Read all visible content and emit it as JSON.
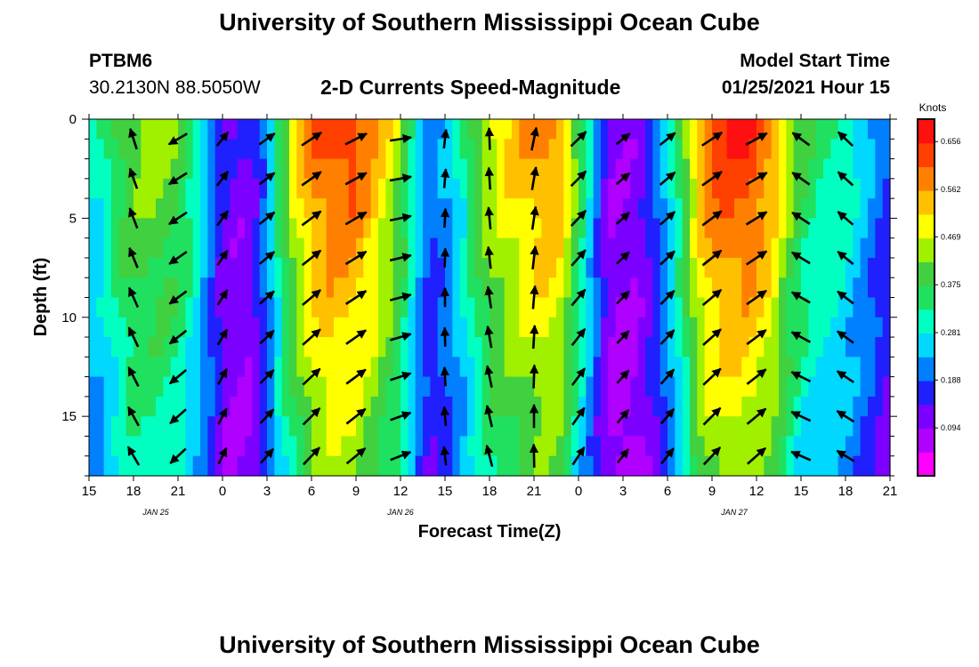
{
  "header": {
    "title": "University of Southern Mississippi Ocean Cube",
    "footer_title": "University of Southern Mississippi Ocean Cube",
    "station": "PTBM6",
    "coords": "30.2130N 88.5050W",
    "chart_title": "2-D Currents Speed-Magnitude",
    "model_start_label": "Model Start Time",
    "model_start_value": "01/25/2021 Hour 15"
  },
  "colorbar": {
    "title": "Knots",
    "ticks": [
      "0.656",
      "0.562",
      "0.469",
      "0.375",
      "0.281",
      "0.188",
      "0.094"
    ],
    "colors": [
      "#ff00ff",
      "#b000ff",
      "#7c00ff",
      "#2020ff",
      "#0080ff",
      "#00d8ff",
      "#00ffc0",
      "#20e060",
      "#40d040",
      "#a0f000",
      "#ffff00",
      "#ffc000",
      "#ff8000",
      "#ff4000",
      "#ff1010"
    ]
  },
  "chart_data": {
    "type": "heatmap",
    "title": "2-D Currents Speed-Magnitude",
    "xlabel": "Forecast Time(Z)",
    "ylabel": "Depth (ft)",
    "x_ticks": [
      "15",
      "18",
      "21",
      "0",
      "3",
      "6",
      "9",
      "12",
      "15",
      "18",
      "21",
      "0",
      "3",
      "6",
      "9",
      "12",
      "15",
      "18",
      "21"
    ],
    "date_labels": [
      {
        "label": "JAN  25",
        "hour": 4.5
      },
      {
        "label": "JAN  26",
        "hour": 21
      },
      {
        "label": "JAN  27",
        "hour": 43.5
      }
    ],
    "y_ticks": [
      0,
      5,
      10,
      15
    ],
    "ylim": [
      0,
      18
    ],
    "x_range_hours": [
      0,
      54
    ],
    "speed_units": "Knots",
    "speed_range": [
      0.0,
      0.7
    ],
    "arrow_depths_ft": [
      1,
      3,
      5,
      7,
      9,
      11,
      13,
      15,
      17
    ],
    "arrow_hours": [
      3,
      6,
      9,
      12,
      15,
      18,
      21,
      24,
      27,
      30,
      33,
      36,
      39,
      42,
      45,
      48,
      51
    ],
    "speed_by_hour": [
      [
        0,
        0.3
      ],
      [
        1,
        0.32
      ],
      [
        2,
        0.4
      ],
      [
        3,
        0.44
      ],
      [
        4,
        0.45
      ],
      [
        5,
        0.45
      ],
      [
        6,
        0.42
      ],
      [
        7,
        0.35
      ],
      [
        8,
        0.26
      ],
      [
        9,
        0.15
      ],
      [
        10,
        0.12
      ],
      [
        11,
        0.14
      ],
      [
        12,
        0.24
      ],
      [
        13,
        0.4
      ],
      [
        14,
        0.52
      ],
      [
        15,
        0.6
      ],
      [
        16,
        0.64
      ],
      [
        17,
        0.65
      ],
      [
        18,
        0.64
      ],
      [
        19,
        0.58
      ],
      [
        20,
        0.52
      ],
      [
        21,
        0.45
      ],
      [
        22,
        0.3
      ],
      [
        23,
        0.2
      ],
      [
        24,
        0.24
      ],
      [
        25,
        0.3
      ],
      [
        26,
        0.4
      ],
      [
        27,
        0.48
      ],
      [
        28,
        0.52
      ],
      [
        29,
        0.55
      ],
      [
        30,
        0.58
      ],
      [
        31,
        0.6
      ],
      [
        32,
        0.55
      ],
      [
        33,
        0.4
      ],
      [
        34,
        0.25
      ],
      [
        35,
        0.12
      ],
      [
        36,
        0.1
      ],
      [
        37,
        0.12
      ],
      [
        38,
        0.18
      ],
      [
        39,
        0.28
      ],
      [
        40,
        0.4
      ],
      [
        41,
        0.55
      ],
      [
        42,
        0.63
      ],
      [
        43,
        0.66
      ],
      [
        44,
        0.66
      ],
      [
        45,
        0.64
      ],
      [
        46,
        0.58
      ],
      [
        47,
        0.48
      ],
      [
        48,
        0.4
      ],
      [
        49,
        0.36
      ],
      [
        50,
        0.34
      ],
      [
        51,
        0.32
      ],
      [
        52,
        0.28
      ],
      [
        53,
        0.22
      ],
      [
        54,
        0.18
      ]
    ],
    "direction_by_hour_deg": [
      [
        0,
        330
      ],
      [
        5,
        340
      ],
      [
        8,
        20
      ],
      [
        10,
        45
      ],
      [
        13,
        50
      ],
      [
        16,
        50
      ],
      [
        19,
        60
      ],
      [
        21,
        75
      ],
      [
        23,
        80
      ],
      [
        24,
        0
      ],
      [
        25,
        345
      ],
      [
        28,
        355
      ],
      [
        30,
        5
      ],
      [
        32,
        20
      ],
      [
        34,
        60
      ],
      [
        36,
        45
      ],
      [
        39,
        45
      ],
      [
        41,
        50
      ],
      [
        44,
        50
      ],
      [
        46,
        60
      ],
      [
        47,
        300
      ],
      [
        49,
        300
      ],
      [
        50,
        310
      ],
      [
        54,
        300
      ]
    ]
  }
}
